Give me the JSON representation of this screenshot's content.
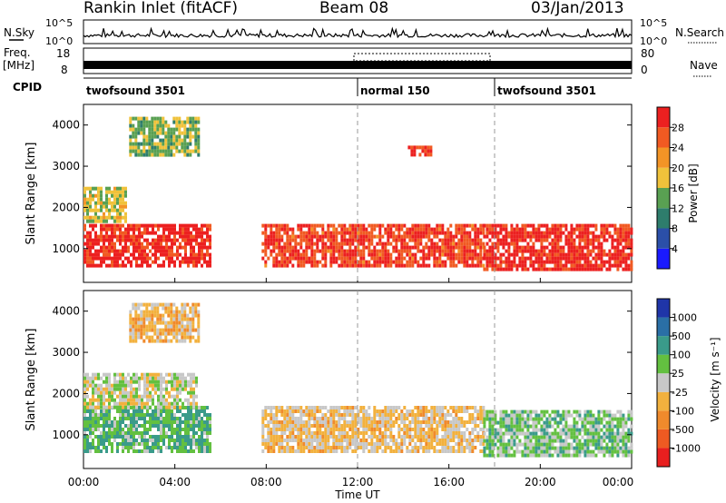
{
  "header": {
    "station": "Rankin Inlet (fitACF)",
    "beam": "Beam 08",
    "date": "03/Jan/2013"
  },
  "left_labels": {
    "nsky": "N.Sky",
    "freq": "Freq.",
    "freq_unit": "[MHz]",
    "cpid": "CPID"
  },
  "right_labels": {
    "nsearch": "N.Search",
    "nave": "Nave"
  },
  "nsky_ticks": [
    "10^5",
    "10^0"
  ],
  "nsearch_ticks": [
    "10^5",
    "10^0"
  ],
  "freq_ticks": [
    "18",
    "8"
  ],
  "nave_ticks": [
    "80",
    "0"
  ],
  "cpid_segments": [
    {
      "label": "twofsound 3501",
      "start": 0,
      "end": 12
    },
    {
      "label": "normal 150",
      "start": 12,
      "end": 18
    },
    {
      "label": "twofsound 3501",
      "start": 18,
      "end": 24
    }
  ],
  "x_axis": {
    "label": "Time UT",
    "ticks": [
      "00:00",
      "04:00",
      "08:00",
      "12:00",
      "16:00",
      "20:00",
      "00:00"
    ]
  },
  "y_axis": {
    "label": "Slant Range [km]",
    "ticks": [
      "1000",
      "2000",
      "3000",
      "4000"
    ]
  },
  "power_colorbar": {
    "label": "Power [dB]",
    "ticks": [
      "4",
      "8",
      "12",
      "16",
      "20",
      "24",
      "28"
    ],
    "colors": [
      "#1a1aff",
      "#2b4fa8",
      "#2e7d6c",
      "#59a052",
      "#f0c23b",
      "#f39426",
      "#f15a22",
      "#ec2020"
    ]
  },
  "velocity_colorbar": {
    "label": "Velocity [m s⁻¹]",
    "ticks": [
      "1000",
      "500",
      "100",
      "25",
      "-25",
      "-100",
      "-500",
      "-1000"
    ],
    "colors": [
      "#1f35a8",
      "#2a6fa6",
      "#3a9b8a",
      "#63c040",
      "#c8c8c8",
      "#f2b13e",
      "#f08a2c",
      "#ee5a22",
      "#e81f1f"
    ]
  },
  "chart_data": [
    {
      "type": "heatmap",
      "title": "Power",
      "xlabel": "Time UT",
      "ylabel": "Slant Range [km]",
      "x_range_hours": [
        0,
        24
      ],
      "ylim_km": [
        180,
        4500
      ],
      "colorbar_label": "Power [dB]",
      "colorbar_range": [
        0,
        30
      ],
      "bands": [
        {
          "from_h": 0.0,
          "to_h": 5.5,
          "range_km": [
            600,
            1600
          ],
          "value": 28
        },
        {
          "from_h": 0.0,
          "to_h": 1.8,
          "range_km": [
            1700,
            2500
          ],
          "value": 16
        },
        {
          "from_h": 7.8,
          "to_h": 17.5,
          "range_km": [
            600,
            1600
          ],
          "value": 26
        },
        {
          "from_h": 17.5,
          "to_h": 24.0,
          "range_km": [
            500,
            1600
          ],
          "value": 28
        },
        {
          "from_h": 2.0,
          "to_h": 5.0,
          "range_km": [
            3300,
            4200
          ],
          "value": 14
        },
        {
          "from_h": 14.2,
          "to_h": 15.2,
          "range_km": [
            3300,
            3500
          ],
          "value": 26
        }
      ]
    },
    {
      "type": "heatmap",
      "title": "Velocity",
      "xlabel": "Time UT",
      "ylabel": "Slant Range [km]",
      "x_range_hours": [
        0,
        24
      ],
      "ylim_km": [
        180,
        4500
      ],
      "colorbar_label": "Velocity [m s⁻¹]",
      "colorbar_range": [
        -1000,
        1000
      ],
      "bands": [
        {
          "from_h": 0.0,
          "to_h": 5.5,
          "range_km": [
            600,
            1700
          ],
          "value": 300
        },
        {
          "from_h": 0.0,
          "to_h": 5.0,
          "range_km": [
            1700,
            2500
          ],
          "value": 0
        },
        {
          "from_h": 7.8,
          "to_h": 17.5,
          "range_km": [
            600,
            1700
          ],
          "value": -150
        },
        {
          "from_h": 17.5,
          "to_h": 24.0,
          "range_km": [
            500,
            1600
          ],
          "value": 200
        },
        {
          "from_h": 2.0,
          "to_h": 5.0,
          "range_km": [
            3300,
            4200
          ],
          "value": -200
        }
      ]
    }
  ]
}
